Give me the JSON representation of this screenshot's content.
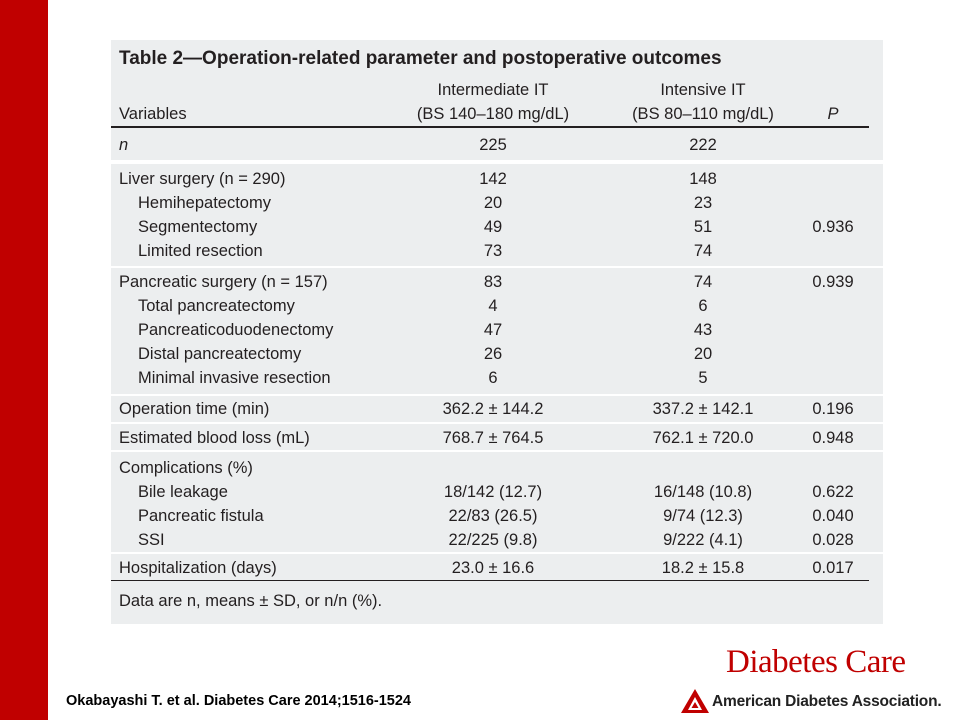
{
  "table": {
    "title": "Table 2—Operation-related parameter and postoperative outcomes",
    "headers": {
      "variables": "Variables",
      "intermediate_line1": "Intermediate IT",
      "intermediate_line2": "(BS 140–180 mg/dL)",
      "intensive_line1": "Intensive IT",
      "intensive_line2": "(BS 80–110 mg/dL)",
      "p": "P"
    },
    "n_row": {
      "label": "n",
      "intermediate": "225",
      "intensive": "222",
      "p": ""
    },
    "liver": {
      "label": "Liver surgery (n = 290)",
      "intermediate": "142",
      "intensive": "148",
      "rows": [
        {
          "label": "Hemihepatectomy",
          "intermediate": "20",
          "intensive": "23",
          "p": ""
        },
        {
          "label": "Segmentectomy",
          "intermediate": "49",
          "intensive": "51",
          "p": "0.936"
        },
        {
          "label": "Limited resection",
          "intermediate": "73",
          "intensive": "74",
          "p": ""
        }
      ]
    },
    "pancreatic": {
      "label": "Pancreatic surgery (n = 157)",
      "intermediate": "83",
      "intensive": "74",
      "p": "0.939",
      "rows": [
        {
          "label": "Total pancreatectomy",
          "intermediate": "4",
          "intensive": "6"
        },
        {
          "label": "Pancreaticoduodenectomy",
          "intermediate": "47",
          "intensive": "43"
        },
        {
          "label": "Distal pancreatectomy",
          "intermediate": "26",
          "intensive": "20"
        },
        {
          "label": "Minimal invasive resection",
          "intermediate": "6",
          "intensive": "5"
        }
      ]
    },
    "operation_time": {
      "label": "Operation time (min)",
      "intermediate": "362.2 ± 144.2",
      "intensive": "337.2 ± 142.1",
      "p": "0.196"
    },
    "blood_loss": {
      "label": "Estimated blood loss (mL)",
      "intermediate": "768.7 ± 764.5",
      "intensive": "762.1 ± 720.0",
      "p": "0.948"
    },
    "complications": {
      "label": "Complications (%)",
      "rows": [
        {
          "label": "Bile leakage",
          "intermediate": "18/142 (12.7)",
          "intensive": "16/148 (10.8)",
          "p": "0.622"
        },
        {
          "label": "Pancreatic fistula",
          "intermediate": "22/83 (26.5)",
          "intensive": "9/74 (12.3)",
          "p": "0.040"
        },
        {
          "label": "SSI",
          "intermediate": "22/225 (9.8)",
          "intensive": "9/222 (4.1)",
          "p": "0.028"
        }
      ]
    },
    "hospitalization": {
      "label": "Hospitalization (days)",
      "intermediate": "23.0 ± 16.6",
      "intensive": "18.2 ± 15.8",
      "p": "0.017"
    },
    "footnote": "Data are n, means ± SD, or n/n (%)."
  },
  "citation": "Okabayashi T. et al. Diabetes Care 2014;1516-1524",
  "journal": "Diabetes Care",
  "publisher": "American Diabetes Association.",
  "logo_icon": "ada-triangle-logo-icon",
  "colors": {
    "accent_red": "#c00000",
    "panel_gray": "#eceeef",
    "text": "#231f20"
  }
}
